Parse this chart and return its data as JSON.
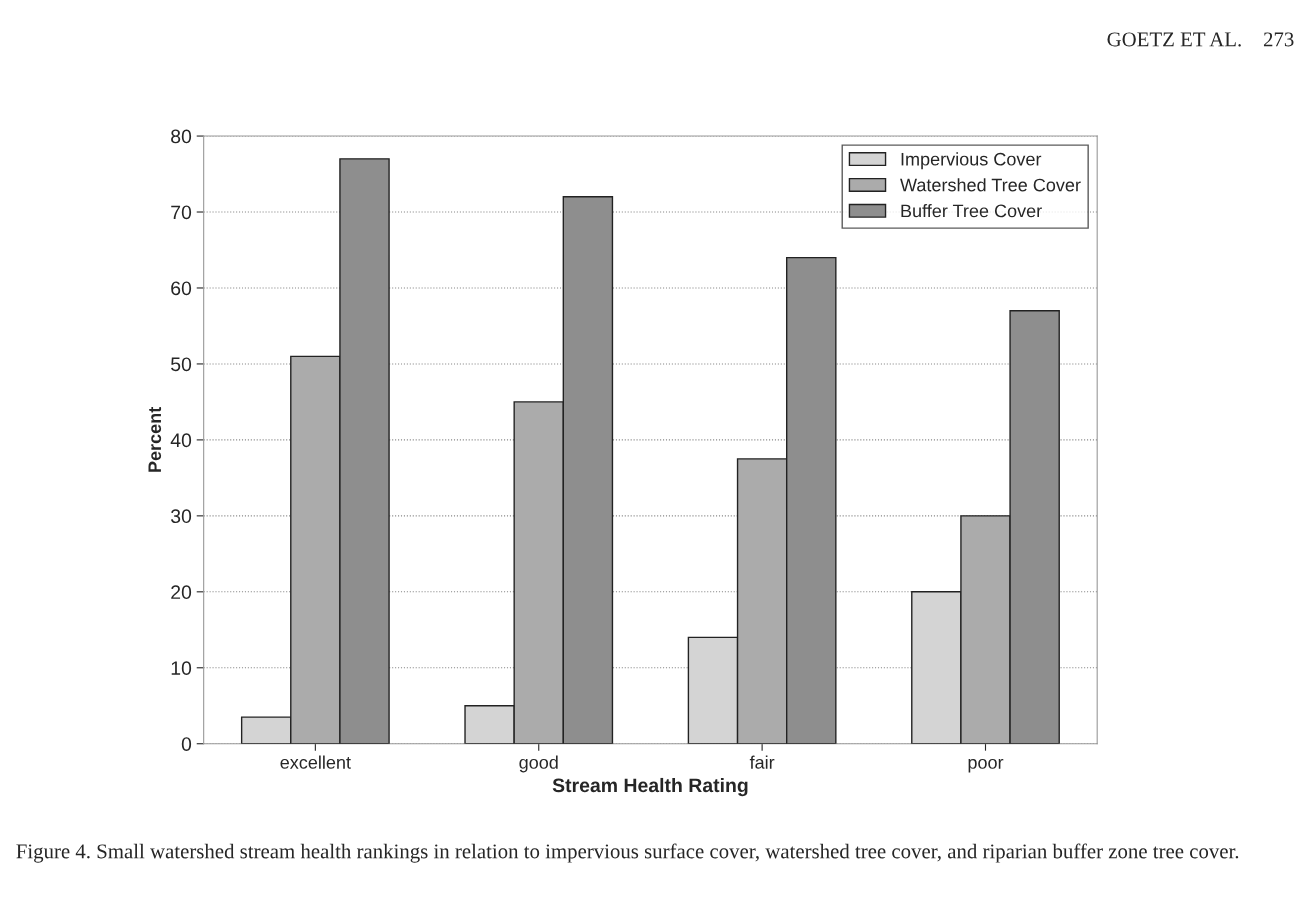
{
  "chart_data": {
    "type": "bar",
    "xlabel": "Stream Health Rating",
    "ylabel": "Percent",
    "categories": [
      "excellent",
      "good",
      "fair",
      "poor"
    ],
    "series": [
      {
        "name": "Impervious Cover",
        "color": "#d4d4d4",
        "values": [
          3.5,
          5,
          14,
          20
        ]
      },
      {
        "name": "Watershed Tree Cover",
        "color": "#ababab",
        "values": [
          51,
          45,
          37.5,
          30
        ]
      },
      {
        "name": "Buffer Tree Cover",
        "color": "#8e8e8e",
        "values": [
          77,
          72,
          64,
          57
        ]
      }
    ],
    "ylim": [
      0,
      80
    ],
    "yticks": [
      0,
      10,
      20,
      30,
      40,
      50,
      60,
      70,
      80
    ],
    "grid": "y",
    "legend": "top right",
    "annotations": [
      "GOETZ ET AL.    273",
      "Figure 4. Small watershed stream health rankings in relation to impervious surface cover, watershed tree cover, and riparian buffer zone tree cover."
    ]
  }
}
